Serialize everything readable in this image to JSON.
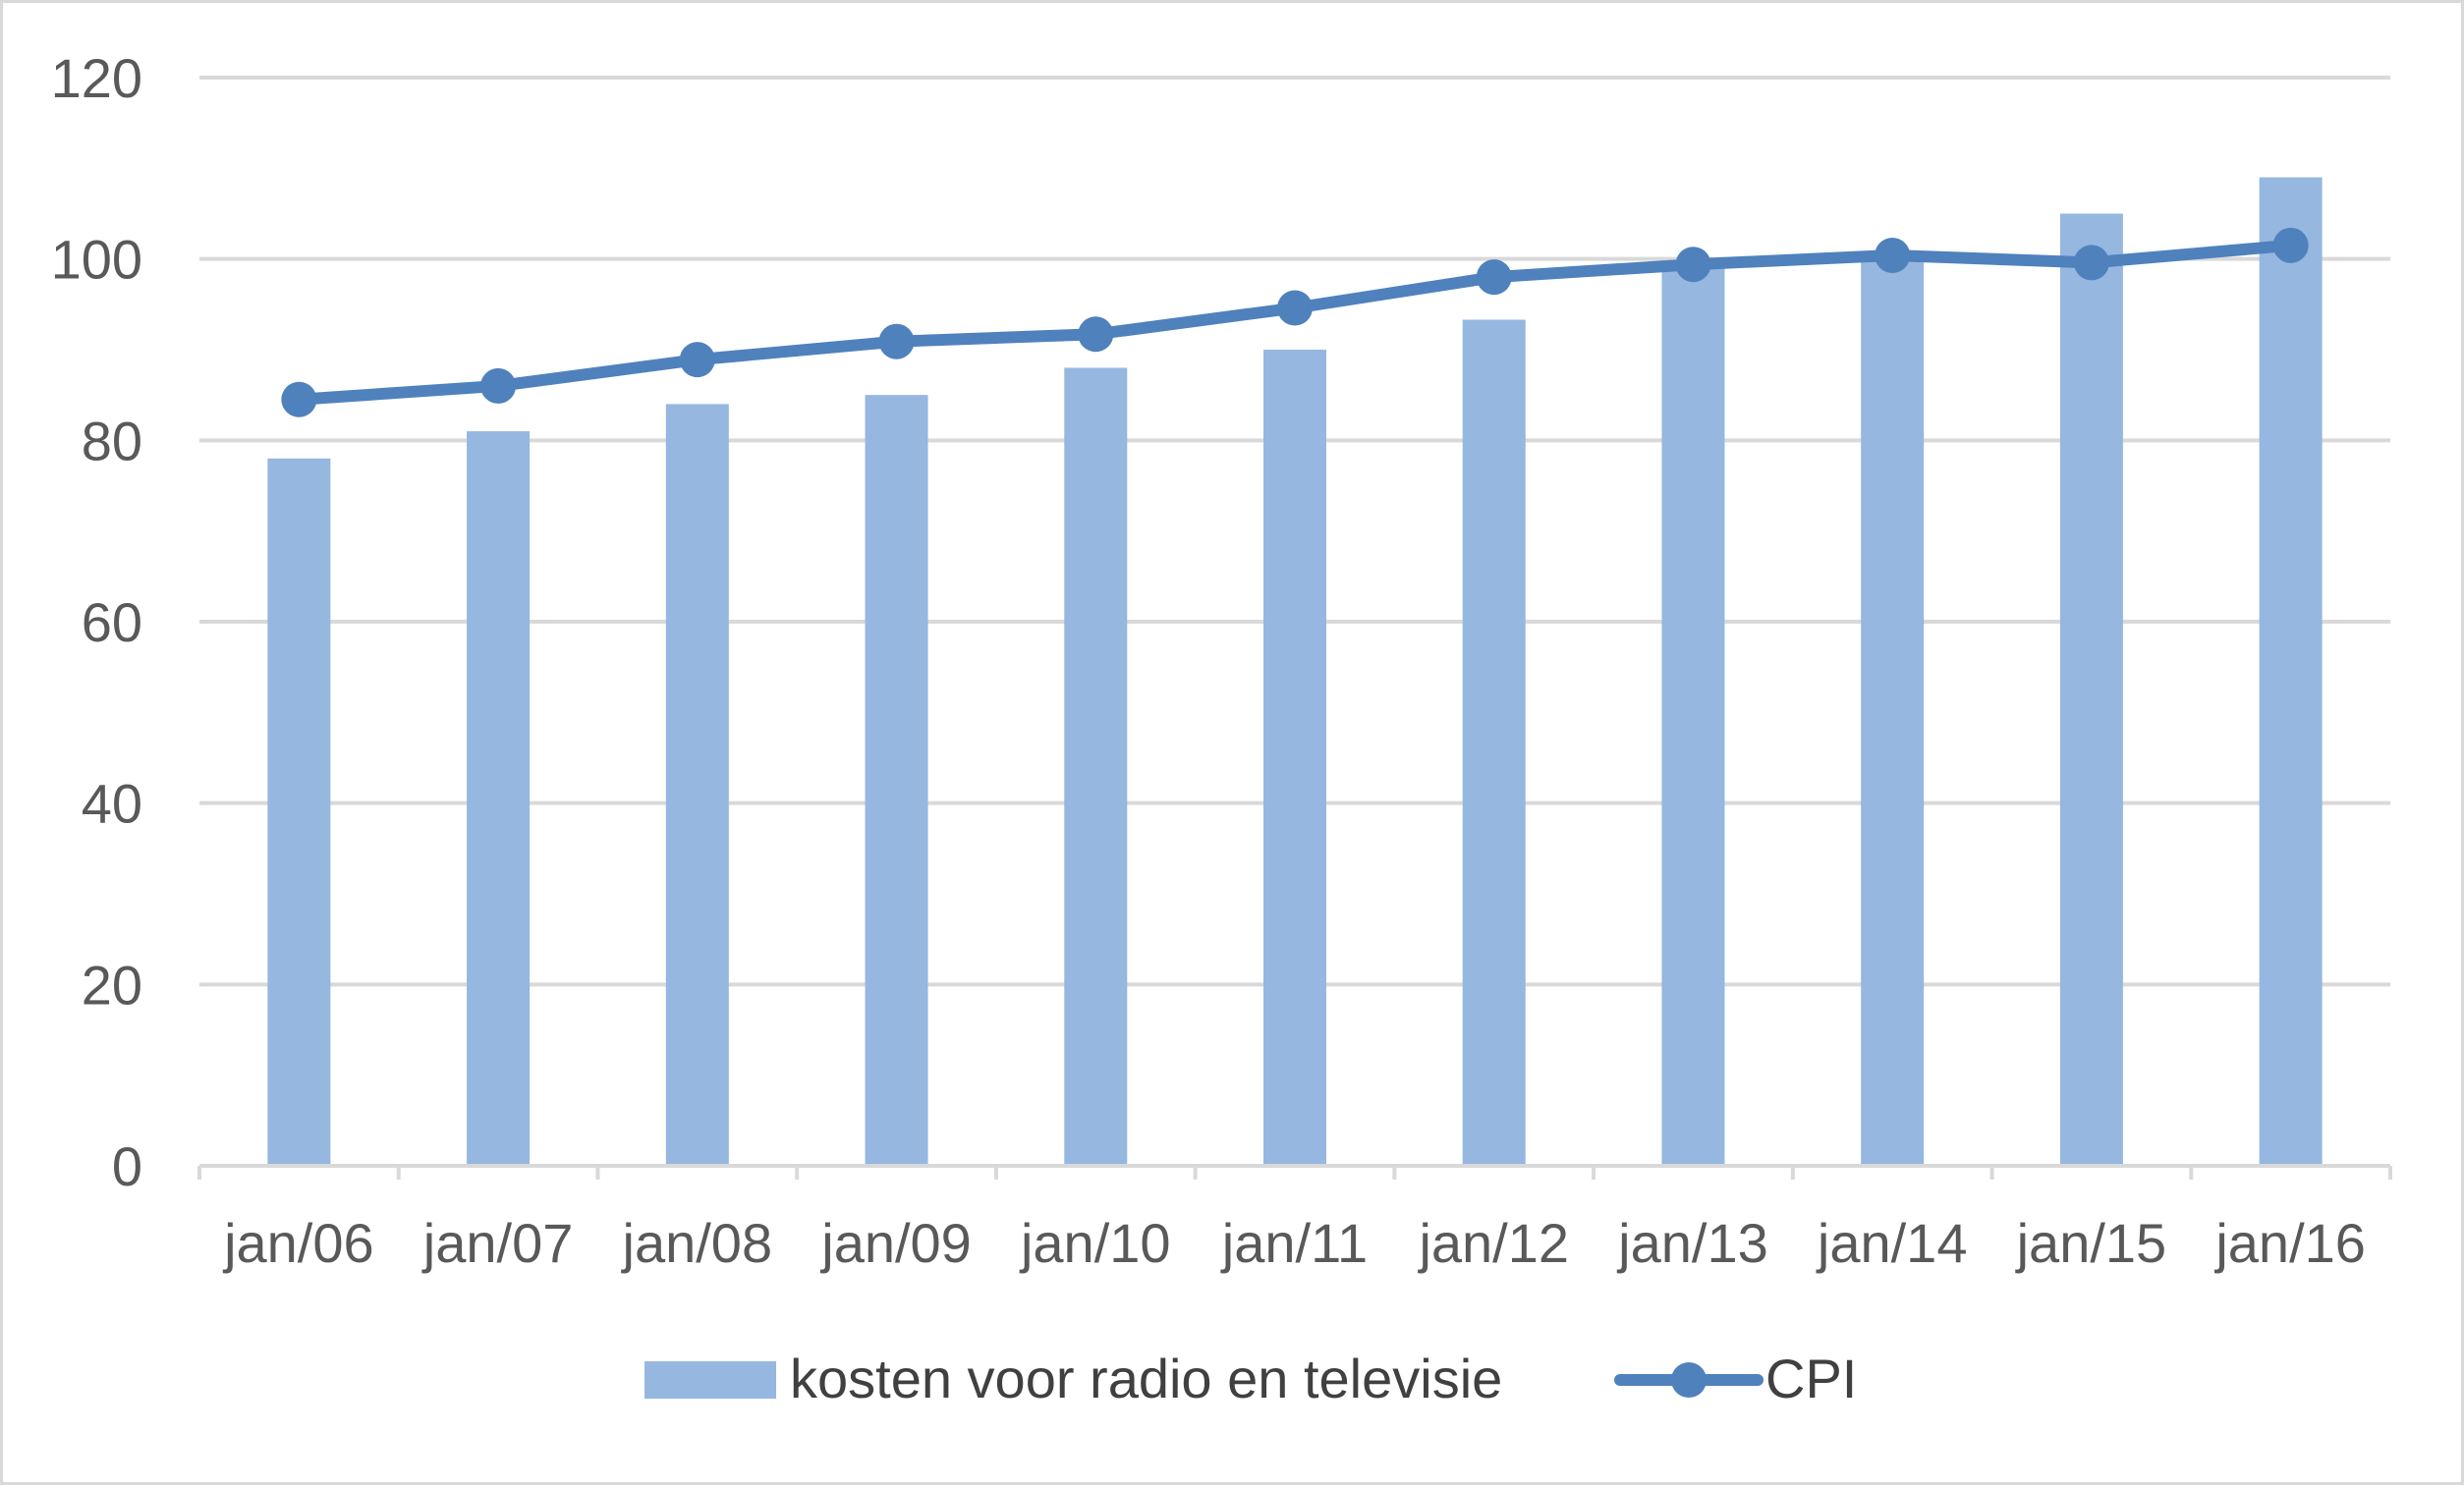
{
  "chart_data": {
    "type": "bar",
    "categories": [
      "jan/06",
      "jan/07",
      "jan/08",
      "jan/09",
      "jan/10",
      "jan/11",
      "jan/12",
      "jan/13",
      "jan/14",
      "jan/15",
      "jan/16"
    ],
    "series": [
      {
        "name": "kosten voor radio en televisie",
        "type": "bar",
        "color": "#95b7e0",
        "values": [
          78,
          81,
          84,
          85,
          88,
          90,
          93.3,
          99,
          100.5,
          105,
          109
        ]
      },
      {
        "name": "CPI",
        "type": "line",
        "marker": "circle",
        "color": "#4f81bd",
        "values": [
          84.5,
          86,
          88.9,
          90.9,
          91.7,
          94.6,
          98,
          99.4,
          100.4,
          99.6,
          101.5
        ]
      }
    ],
    "y_ticks": [
      "0",
      "20",
      "40",
      "60",
      "80",
      "100",
      "120"
    ],
    "ylim": [
      0,
      120
    ],
    "grid": true,
    "legend_position": "bottom"
  }
}
